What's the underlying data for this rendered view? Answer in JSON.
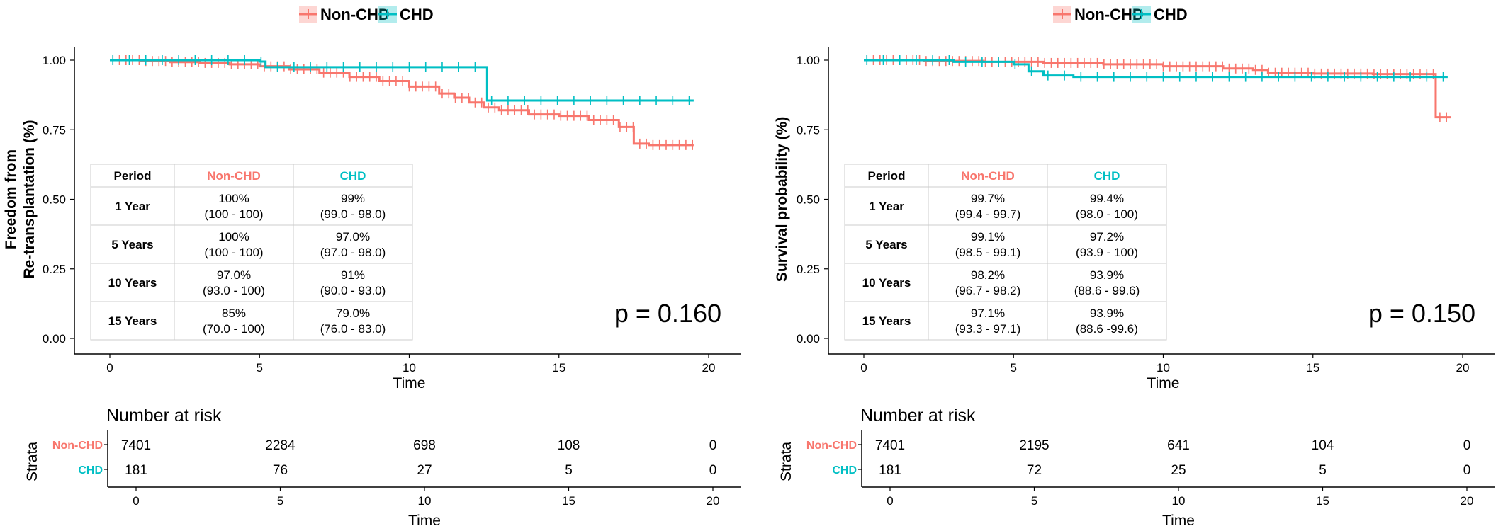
{
  "colors": {
    "non_chd": "#F8766D",
    "chd": "#00BFC4",
    "axis": "#000000",
    "grid": "#cccccc"
  },
  "chart_data": [
    {
      "type": "line",
      "title": "",
      "xlabel": "Time",
      "ylabel_lines": [
        "Freedom from",
        "Re-transplantation (%)"
      ],
      "xlim": [
        0,
        20
      ],
      "ylim": [
        0,
        1
      ],
      "x_ticks": [
        0,
        5,
        10,
        15,
        20
      ],
      "y_ticks": [
        "0.00",
        "0.25",
        "0.50",
        "0.75",
        "1.00"
      ],
      "grid": false,
      "legend": {
        "position": "top-center",
        "entries": [
          "Non-CHD",
          "CHD"
        ]
      },
      "p_value": "p = 0.160",
      "series": [
        {
          "name": "Non-CHD",
          "color": "#F8766D",
          "x": [
            0,
            1,
            2,
            3,
            4,
            5,
            6,
            7,
            8,
            9,
            10,
            11,
            11.5,
            12,
            12.5,
            13,
            14,
            15,
            16,
            17,
            17.5,
            18,
            19.5
          ],
          "y": [
            1.0,
            0.997,
            0.993,
            0.99,
            0.985,
            0.978,
            0.967,
            0.955,
            0.94,
            0.925,
            0.905,
            0.88,
            0.865,
            0.848,
            0.83,
            0.82,
            0.805,
            0.8,
            0.785,
            0.76,
            0.7,
            0.695,
            0.695
          ]
        },
        {
          "name": "CHD",
          "color": "#00BFC4",
          "x": [
            0,
            5,
            5.2,
            12.4,
            12.6,
            19.5
          ],
          "y": [
            1.0,
            0.995,
            0.975,
            0.975,
            0.855,
            0.855
          ]
        }
      ],
      "table": {
        "headers": [
          "Period",
          "Non-CHD",
          "CHD"
        ],
        "rows": [
          [
            "1 Year",
            "100%",
            "(100 - 100)",
            "99%",
            "(99.0 - 98.0)"
          ],
          [
            "5 Years",
            "100%",
            "(100 - 100)",
            "97.0%",
            "(97.0 - 98.0)"
          ],
          [
            "10 Years",
            "97.0%",
            "(93.0 - 100)",
            "91%",
            "(90.0 - 93.0)"
          ],
          [
            "15 Years",
            "85%",
            "(70.0 - 100)",
            "79.0%",
            "(76.0 - 83.0)"
          ]
        ]
      },
      "risk_table": {
        "title": "Number at risk",
        "strata_label": "Strata",
        "xlabel": "Time",
        "labels": [
          "Non-CHD",
          "CHD"
        ],
        "rows": [
          [
            "7401",
            "2284",
            "698",
            "108",
            "0"
          ],
          [
            "181",
            "76",
            "27",
            "5",
            "0"
          ]
        ]
      }
    },
    {
      "type": "line",
      "title": "",
      "xlabel": "Time",
      "ylabel_lines": [
        "Survival probability (%)"
      ],
      "xlim": [
        0,
        20
      ],
      "ylim": [
        0,
        1
      ],
      "x_ticks": [
        0,
        5,
        10,
        15,
        20
      ],
      "y_ticks": [
        "0.00",
        "0.25",
        "0.50",
        "0.75",
        "1.00"
      ],
      "grid": false,
      "legend": {
        "position": "top-center",
        "entries": [
          "Non-CHD",
          "CHD"
        ]
      },
      "p_value": "p = 0.150",
      "series": [
        {
          "name": "Non-CHD",
          "color": "#F8766D",
          "x": [
            0,
            2,
            4,
            6,
            8,
            10,
            12,
            13,
            13.5,
            15,
            17,
            19,
            19.1,
            19.6
          ],
          "y": [
            1.0,
            0.997,
            0.994,
            0.99,
            0.985,
            0.978,
            0.97,
            0.965,
            0.955,
            0.952,
            0.95,
            0.95,
            0.795,
            0.795
          ]
        },
        {
          "name": "CHD",
          "color": "#00BFC4",
          "x": [
            0,
            3,
            5,
            5.5,
            6,
            7,
            13.5,
            19.5
          ],
          "y": [
            1.0,
            0.994,
            0.985,
            0.96,
            0.945,
            0.94,
            0.94,
            0.94
          ]
        }
      ],
      "table": {
        "headers": [
          "Period",
          "Non-CHD",
          "CHD"
        ],
        "rows": [
          [
            "1 Year",
            "99.7%",
            "(99.4 - 99.7)",
            "99.4%",
            "(98.0 - 100)"
          ],
          [
            "5 Years",
            "99.1%",
            "(98.5 - 99.1)",
            "97.2%",
            "(93.9 - 100)"
          ],
          [
            "10 Years",
            "98.2%",
            "(96.7 - 98.2)",
            "93.9%",
            "(88.6 - 99.6)"
          ],
          [
            "15 Years",
            "97.1%",
            "(93.3 - 97.1)",
            "93.9%",
            "(88.6 -99.6)"
          ]
        ]
      },
      "risk_table": {
        "title": "Number at risk",
        "strata_label": "Strata",
        "xlabel": "Time",
        "labels": [
          "Non-CHD",
          "CHD"
        ],
        "rows": [
          [
            "7401",
            "2195",
            "641",
            "104",
            "0"
          ],
          [
            "181",
            "72",
            "25",
            "5",
            "0"
          ]
        ]
      }
    }
  ]
}
